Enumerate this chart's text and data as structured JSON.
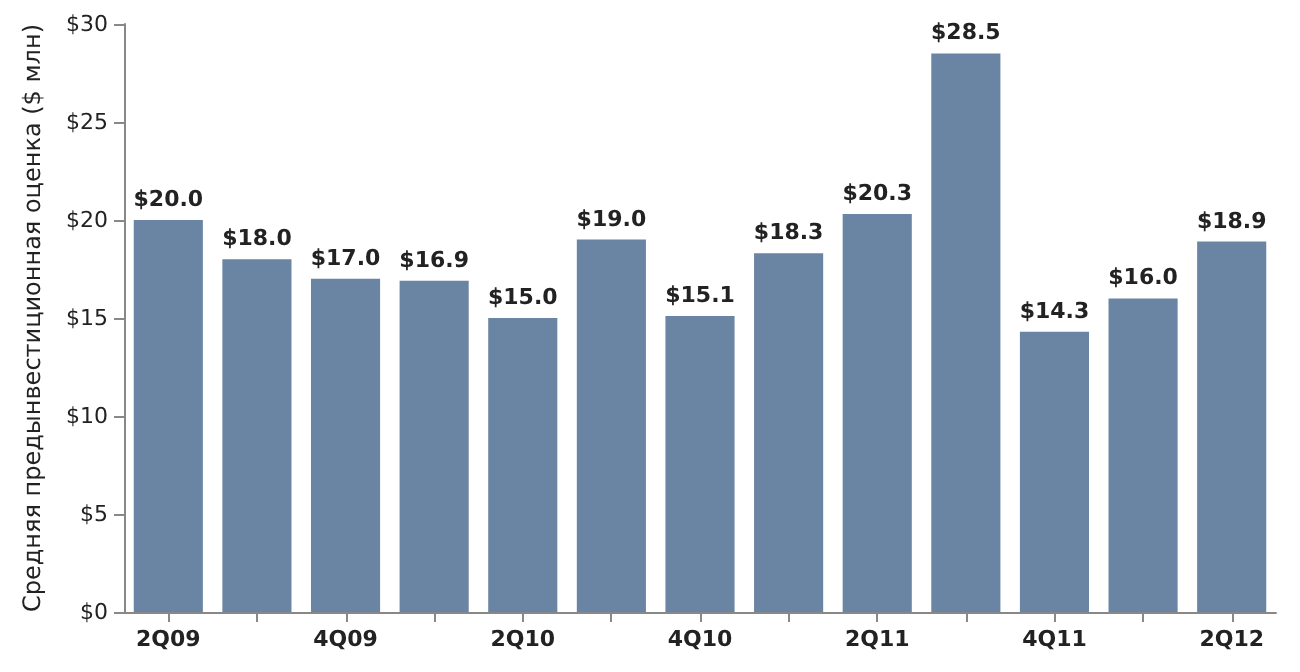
{
  "chart_data": {
    "type": "bar",
    "ylabel": "Средняя предынвестиционная оценка ($ млн)",
    "categories": [
      "2Q09",
      null,
      "4Q09",
      null,
      "2Q10",
      null,
      "4Q10",
      null,
      "2Q11",
      null,
      "4Q11",
      null,
      "2Q12"
    ],
    "values": [
      20.0,
      18.0,
      17.0,
      16.9,
      15.0,
      19.0,
      15.1,
      18.3,
      20.3,
      28.5,
      14.3,
      16.0,
      18.9
    ],
    "value_labels": [
      "$20.0",
      "$18.0",
      "$17.0",
      "$16.9",
      "$15.0",
      "$19.0",
      "$15.1",
      "$18.3",
      "$20.3",
      "$28.5",
      "$14.3",
      "$16.0",
      "$18.9"
    ],
    "color": "#6a84a3",
    "ylim": [
      0,
      30
    ],
    "yticks": [
      {
        "value": 0,
        "label": "$0"
      },
      {
        "value": 5,
        "label": "$5"
      },
      {
        "value": 10,
        "label": "$10"
      },
      {
        "value": 15,
        "label": "$15"
      },
      {
        "value": 20,
        "label": "$20"
      },
      {
        "value": 25,
        "label": "$25"
      },
      {
        "value": 30,
        "label": "$30"
      }
    ],
    "grid": false
  }
}
